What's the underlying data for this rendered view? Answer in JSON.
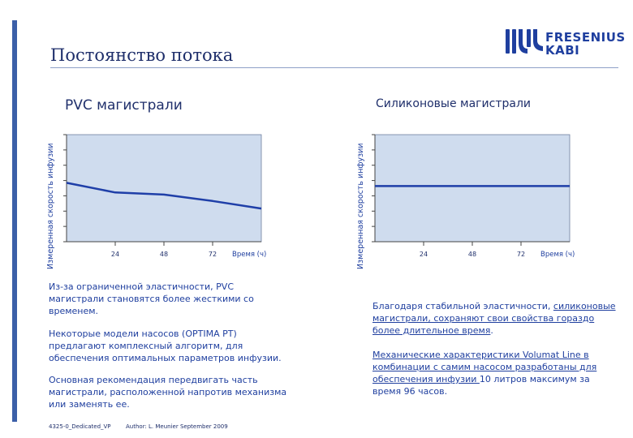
{
  "header": {
    "title": "Постоянство потока",
    "logo_line1": "FRESENIUS",
    "logo_line2": "KABI",
    "brand_color": "#1f3f9f"
  },
  "chart_data": [
    {
      "type": "line",
      "title": "PVC магистрали",
      "ylabel": "Измеренная скорость инфузии",
      "xlabel": "Время (ч)",
      "ticks": [
        "24",
        "48",
        "72"
      ],
      "x": [
        0,
        24,
        48,
        72,
        96
      ],
      "values": [
        0.55,
        0.46,
        0.44,
        0.38,
        0.31
      ],
      "xlim": [
        0,
        96
      ],
      "ylim": [
        0,
        1
      ],
      "grid": false,
      "colors": {
        "plot_bg": "#cfdcee",
        "line": "#1f3fa8"
      }
    },
    {
      "type": "line",
      "title": "Силиконовые магистрали",
      "ylabel": "Измеренная скорость инфузии",
      "xlabel": "Время (ч)",
      "ticks": [
        "24",
        "48",
        "72"
      ],
      "x": [
        0,
        24,
        48,
        72,
        96
      ],
      "values": [
        0.52,
        0.52,
        0.52,
        0.52,
        0.52
      ],
      "xlim": [
        0,
        96
      ],
      "ylim": [
        0,
        1
      ],
      "grid": false,
      "colors": {
        "plot_bg": "#cfdcee",
        "line": "#1f3fa8"
      }
    }
  ],
  "left": {
    "p1": "Из-за ограниченной эластичности, PVC магистрали становятся более жесткими со временем.",
    "p2": "Некоторые модели насосов (OPTIMA PT) предлагают комплексный алгоритм, для обеспечения оптимальных параметров инфузии.",
    "p3": "Основная рекомендация передвигать часть магистрали, расположенной напротив механизма или заменять ее."
  },
  "right": {
    "p4_plain": "Благодаря стабильной эластичности, ",
    "p4_underlined": "силиконовые магистрали, сохраняют свои свойства гораздо более длительное время",
    "p4_end": ".",
    "p5_underlined": "Механические характеристики Volumat Line в комбинации с самим насосом разработаны для обеспечения инфузии ",
    "p5_plain": "10 литров максимум за время  96 часов."
  },
  "footer": {
    "code": "4325-0_Dedicated_VP",
    "author": "Author: L. Meunier  September 2009"
  }
}
